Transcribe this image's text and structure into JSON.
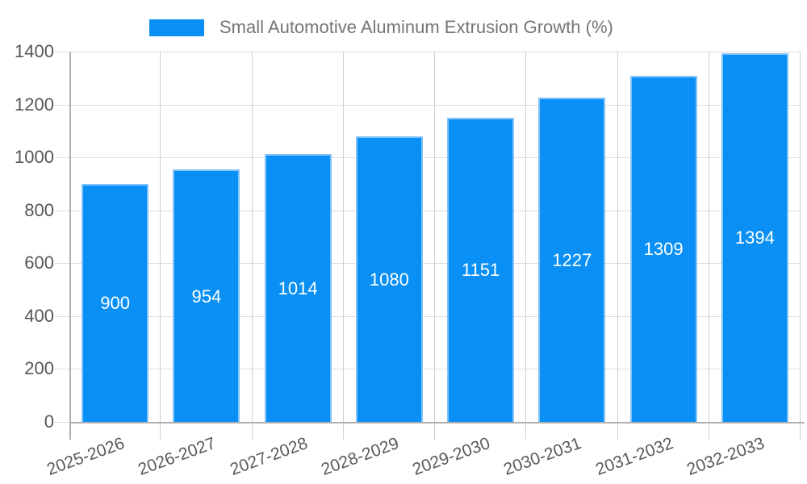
{
  "legend": {
    "items": [
      {
        "label": "Small Automotive Aluminum Extrusion Growth (%)",
        "swatch_color": "#0a90f5"
      }
    ],
    "position": "top-center"
  },
  "chart_data": {
    "type": "bar",
    "title": "Small Automotive Aluminum Extrusion Growth (%)",
    "categories": [
      "2025-2026",
      "2026-2027",
      "2027-2028",
      "2028-2029",
      "2029-2030",
      "2030-2031",
      "2031-2032",
      "2032-2033"
    ],
    "values": [
      900,
      954,
      1014,
      1080,
      1151,
      1227,
      1309,
      1394
    ],
    "series_name": "Small Automotive Aluminum Extrusion Growth (%)",
    "xlabel": "",
    "ylabel": "",
    "ylim": [
      0,
      1400
    ],
    "yticks": [
      0,
      200,
      400,
      600,
      800,
      1000,
      1200,
      1400
    ],
    "grid": true,
    "legend_position": "top",
    "value_labels": "inside-center-white",
    "x_tick_rotation_deg": -20
  },
  "colors": {
    "bar_fill": "#0a90f5",
    "bar_border": "#84c3f9",
    "grid_horizontal": "#dcdcdc",
    "grid_vertical": "#cfcfcf",
    "axis_line": "#b0b0b0",
    "y_tick_text": "#565656",
    "x_tick_text": "#5a5a5a",
    "legend_text": "#757575",
    "value_text": "#ffffff",
    "background": "#ffffff"
  }
}
